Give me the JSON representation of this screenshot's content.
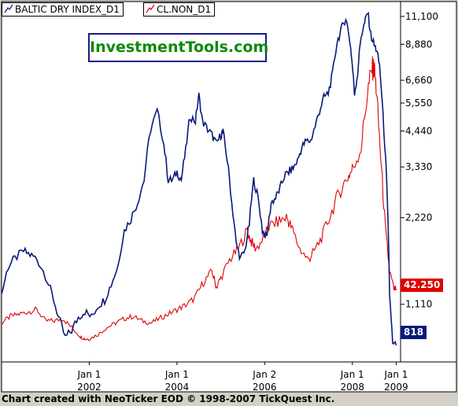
{
  "chart_data": {
    "type": "line",
    "y_scale": "log",
    "ylim": [
      700,
      12500
    ],
    "x_ticks": [
      {
        "top": "Jan 1",
        "bottom": "2002",
        "t": 2002.0
      },
      {
        "top": "Jan 1",
        "bottom": "2004",
        "t": 2004.0
      },
      {
        "top": "Jan 2",
        "bottom": "2006",
        "t": 2006.0
      },
      {
        "top": "Jan 1",
        "bottom": "2008",
        "t": 2008.0
      },
      {
        "top": "Jan 1",
        "bottom": "2009",
        "t": 2009.0
      }
    ],
    "y_ticks": [
      "11,100",
      "8,880",
      "6,660",
      "5,550",
      "4,440",
      "3,330",
      "2,220",
      "1,110"
    ],
    "y_tick_values": [
      11100,
      8880,
      6660,
      5550,
      4440,
      3330,
      2220,
      1110
    ],
    "series": [
      {
        "name": "BALTIC DRY INDEX_D1",
        "color": "#0a1a7a",
        "last_value": "818",
        "x": [
          2000.0,
          2000.15,
          2000.3,
          2000.5,
          2000.65,
          2000.8,
          2001.0,
          2001.15,
          2001.3,
          2001.45,
          2001.6,
          2001.75,
          2001.9,
          2002.05,
          2002.2,
          2002.35,
          2002.5,
          2002.65,
          2002.8,
          2002.95,
          2003.1,
          2003.25,
          2003.4,
          2003.55,
          2003.7,
          2003.8,
          2003.9,
          2004.0,
          2004.1,
          2004.2,
          2004.3,
          2004.42,
          2004.5,
          2004.58,
          2004.7,
          2004.8,
          2004.9,
          2005.0,
          2005.05,
          2005.15,
          2005.25,
          2005.35,
          2005.45,
          2005.55,
          2005.65,
          2005.75,
          2005.85,
          2005.95,
          2006.05,
          2006.15,
          2006.25,
          2006.35,
          2006.45,
          2006.55,
          2006.65,
          2006.75,
          2006.85,
          2006.95,
          2007.05,
          2007.15,
          2007.25,
          2007.35,
          2007.45,
          2007.55,
          2007.65,
          2007.75,
          2007.85,
          2007.95,
          2008.0,
          2008.05,
          2008.12,
          2008.2,
          2008.28,
          2008.35,
          2008.42,
          2008.5,
          2008.55,
          2008.62,
          2008.7,
          2008.78,
          2008.85,
          2008.92,
          2009.0
        ],
        "y": [
          1200,
          1500,
          1600,
          1700,
          1650,
          1600,
          1400,
          1200,
          1000,
          850,
          900,
          1000,
          1050,
          1000,
          1100,
          1150,
          1300,
          1500,
          2000,
          2200,
          2500,
          3000,
          4500,
          5200,
          4000,
          3000,
          3000,
          3200,
          3000,
          3800,
          5000,
          4800,
          5900,
          4800,
          4500,
          4300,
          4000,
          4300,
          4400,
          3500,
          2500,
          1800,
          1600,
          1700,
          2100,
          3000,
          2600,
          2000,
          1900,
          2500,
          2600,
          2800,
          3100,
          3200,
          3300,
          3500,
          3900,
          4100,
          4100,
          4600,
          5200,
          5800,
          6000,
          7000,
          9000,
          10000,
          11000,
          9000,
          7500,
          6000,
          7000,
          9500,
          10500,
          11500,
          9600,
          8800,
          8500,
          7500,
          5000,
          3000,
          1200,
          800,
          800
        ]
      },
      {
        "name": "CL.NON_D1",
        "color": "#e00000",
        "last_value": "42.250",
        "x": [
          2000.0,
          2000.2,
          2000.4,
          2000.6,
          2000.8,
          2001.0,
          2001.2,
          2001.4,
          2001.6,
          2001.8,
          2001.9,
          2002.0,
          2002.2,
          2002.4,
          2002.6,
          2002.8,
          2003.0,
          2003.2,
          2003.4,
          2003.6,
          2003.8,
          2004.0,
          2004.2,
          2004.4,
          2004.6,
          2004.8,
          2004.9,
          2005.0,
          2005.2,
          2005.4,
          2005.6,
          2005.7,
          2005.8,
          2006.0,
          2006.1,
          2006.3,
          2006.5,
          2006.6,
          2006.8,
          2007.0,
          2007.1,
          2007.3,
          2007.5,
          2007.7,
          2007.9,
          2008.0,
          2008.2,
          2008.35,
          2008.45,
          2008.5,
          2008.55,
          2008.65,
          2008.75,
          2008.85,
          2008.95,
          2009.0
        ],
        "y": [
          27,
          30,
          31,
          32,
          33,
          28,
          28,
          29,
          25,
          21,
          20,
          20,
          22,
          25,
          27,
          29,
          30,
          28,
          27,
          29,
          31,
          33,
          35,
          38,
          45,
          50,
          43,
          47,
          55,
          60,
          68,
          63,
          60,
          65,
          70,
          72,
          74,
          70,
          60,
          55,
          58,
          65,
          75,
          85,
          92,
          95,
          105,
          130,
          140,
          140,
          130,
          100,
          70,
          50,
          42,
          42.25
        ]
      }
    ]
  },
  "legend": {
    "series_0": "BALTIC DRY INDEX_D1",
    "series_1": "CL.NON_D1"
  },
  "watermark": "InvestmentTools.com",
  "credit": "Chart created with NeoTicker EOD © 1998-2007 TickQuest Inc."
}
